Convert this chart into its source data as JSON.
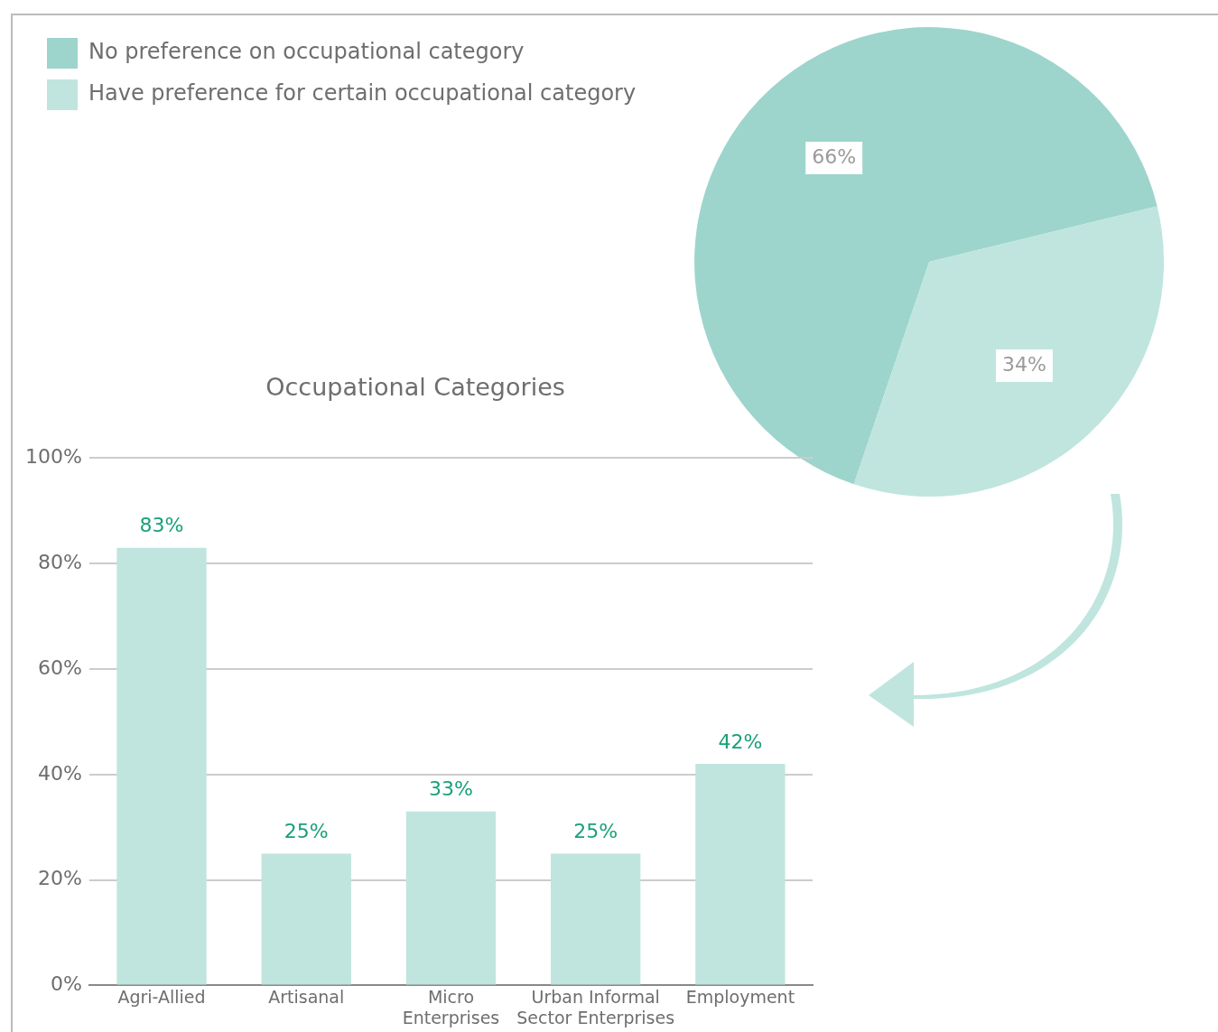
{
  "chart_data": [
    {
      "type": "pie",
      "categories": [
        "No preference on occupational category",
        "Have preference for certain occupational category"
      ],
      "values": [
        66,
        34
      ],
      "value_labels": [
        "66%",
        "34%"
      ],
      "colors": [
        "#9dd5cc",
        "#bfe5de"
      ],
      "legend": "top left"
    },
    {
      "type": "bar",
      "title": "Occupational Categories",
      "categories": [
        "Agri-Allied",
        "Artisanal",
        "Micro Enterprises",
        "Urban Informal Sector Enterprises",
        "Employment"
      ],
      "values": [
        83,
        25,
        33,
        25,
        42
      ],
      "value_labels": [
        "83%",
        "25%",
        "33%",
        "25%",
        "42%"
      ],
      "color": "#bfe5de",
      "ylim": [
        0,
        100
      ],
      "yticks": [
        {
          "value": 0,
          "label": "0%"
        },
        {
          "value": 20,
          "label": "20%"
        },
        {
          "value": 40,
          "label": "40%"
        },
        {
          "value": 60,
          "label": "60%"
        },
        {
          "value": 80,
          "label": "80%"
        },
        {
          "value": 100,
          "label": "100%"
        }
      ],
      "grid": "y"
    }
  ]
}
